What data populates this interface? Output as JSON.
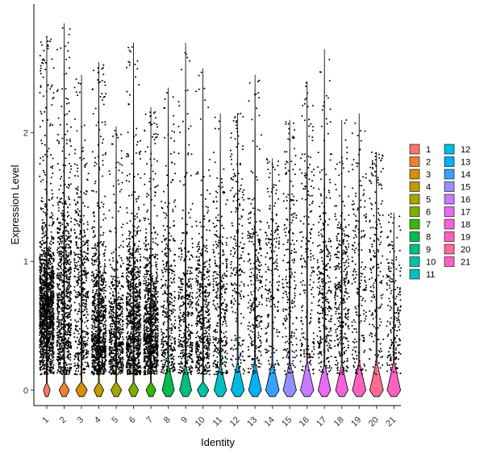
{
  "chart_data": {
    "type": "violin",
    "xlabel": "Identity",
    "ylabel": "Expression Level",
    "categories": [
      "1",
      "2",
      "3",
      "4",
      "5",
      "6",
      "7",
      "8",
      "9",
      "10",
      "11",
      "12",
      "13",
      "14",
      "15",
      "16",
      "17",
      "18",
      "19",
      "20",
      "21"
    ],
    "y_ticks": [
      0,
      1,
      2
    ],
    "ylim": [
      -0.12,
      3.0
    ],
    "series": [
      {
        "name": "1",
        "color": "#F8766D",
        "frac_expressing": 0.85,
        "max": 2.75,
        "nonzero_center": 0.6,
        "nonzero_spread": 0.28
      },
      {
        "name": "2",
        "color": "#EA8331",
        "frac_expressing": 0.45,
        "max": 2.85,
        "nonzero_center": 0.65,
        "nonzero_spread": 0.45
      },
      {
        "name": "3",
        "color": "#D89000",
        "frac_expressing": 0.3,
        "max": 2.45,
        "nonzero_center": 0.7,
        "nonzero_spread": 0.5
      },
      {
        "name": "4",
        "color": "#C09B00",
        "frac_expressing": 0.5,
        "max": 2.55,
        "nonzero_center": 0.45,
        "nonzero_spread": 0.35
      },
      {
        "name": "5",
        "color": "#A3A500",
        "frac_expressing": 0.4,
        "max": 2.05,
        "nonzero_center": 0.4,
        "nonzero_spread": 0.3
      },
      {
        "name": "6",
        "color": "#7CAE00",
        "frac_expressing": 0.5,
        "max": 2.7,
        "nonzero_center": 0.5,
        "nonzero_spread": 0.35
      },
      {
        "name": "7",
        "color": "#39B600",
        "frac_expressing": 0.5,
        "max": 2.2,
        "nonzero_center": 0.45,
        "nonzero_spread": 0.3
      },
      {
        "name": "8",
        "color": "#00BB4E",
        "frac_expressing": 0.2,
        "max": 2.35,
        "nonzero_center": 0.55,
        "nonzero_spread": 0.45
      },
      {
        "name": "9",
        "color": "#00BF7D",
        "frac_expressing": 0.22,
        "max": 2.7,
        "nonzero_center": 0.5,
        "nonzero_spread": 0.4
      },
      {
        "name": "10",
        "color": "#00C1A3",
        "frac_expressing": 0.3,
        "max": 2.5,
        "nonzero_center": 0.5,
        "nonzero_spread": 0.35
      },
      {
        "name": "11",
        "color": "#00BFC4",
        "frac_expressing": 0.18,
        "max": 2.15,
        "nonzero_center": 0.6,
        "nonzero_spread": 0.45
      },
      {
        "name": "12",
        "color": "#00BAE0",
        "frac_expressing": 0.08,
        "max": 2.15,
        "nonzero_center": 1.0,
        "nonzero_spread": 0.6
      },
      {
        "name": "13",
        "color": "#00B0F6",
        "frac_expressing": 0.12,
        "max": 2.45,
        "nonzero_center": 0.7,
        "nonzero_spread": 0.4
      },
      {
        "name": "14",
        "color": "#35A2FF",
        "frac_expressing": 0.05,
        "max": 1.8,
        "nonzero_center": 0.9,
        "nonzero_spread": 0.5
      },
      {
        "name": "15",
        "color": "#9590FF",
        "frac_expressing": 0.07,
        "max": 2.1,
        "nonzero_center": 0.9,
        "nonzero_spread": 0.55
      },
      {
        "name": "16",
        "color": "#C77CFF",
        "frac_expressing": 0.06,
        "max": 2.4,
        "nonzero_center": 1.0,
        "nonzero_spread": 0.6
      },
      {
        "name": "17",
        "color": "#E76BF3",
        "frac_expressing": 0.15,
        "max": 2.65,
        "nonzero_center": 0.7,
        "nonzero_spread": 0.45
      },
      {
        "name": "18",
        "color": "#FA62DB",
        "frac_expressing": 0.18,
        "max": 2.1,
        "nonzero_center": 0.75,
        "nonzero_spread": 0.4
      },
      {
        "name": "19",
        "color": "#FF62BC",
        "frac_expressing": 0.05,
        "max": 2.15,
        "nonzero_center": 0.8,
        "nonzero_spread": 0.6
      },
      {
        "name": "20",
        "color": "#FF6C91",
        "frac_expressing": 0.04,
        "max": 1.85,
        "nonzero_center": 1.0,
        "nonzero_spread": 0.5
      },
      {
        "name": "21",
        "color": "#FF61C3",
        "frac_expressing": 0.05,
        "max": 1.38,
        "nonzero_center": 0.6,
        "nonzero_spread": 0.4
      }
    ],
    "legend": {
      "placement": "right",
      "columns": 2
    },
    "grid": false,
    "point_color": "#000000"
  }
}
